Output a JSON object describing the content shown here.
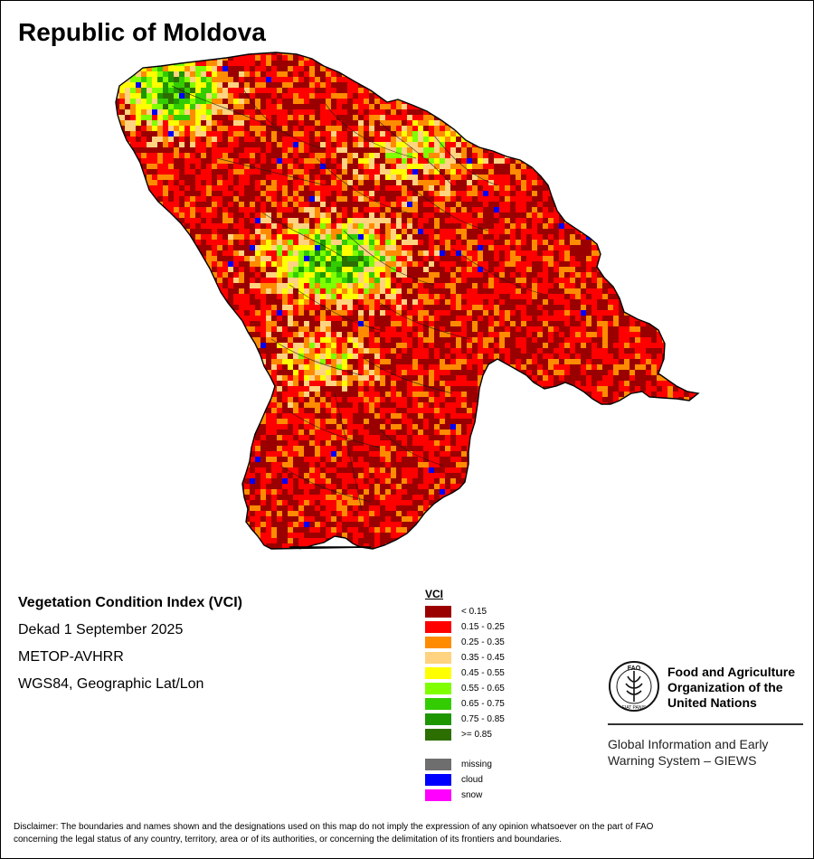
{
  "title": "Republic of Moldova",
  "info": {
    "index_name": "Vegetation Condition Index (VCI)",
    "period": "Dekad 1 September 2025",
    "sensor": "METOP-AVHRR",
    "projection": "WGS84, Geographic Lat/Lon"
  },
  "legend": {
    "title": "VCI",
    "classes": [
      {
        "label": "< 0.15",
        "color": "#9b0000"
      },
      {
        "label": "0.15 - 0.25",
        "color": "#ff0000"
      },
      {
        "label": "0.25 - 0.35",
        "color": "#ff8c00"
      },
      {
        "label": "0.35 - 0.45",
        "color": "#ffd37f"
      },
      {
        "label": "0.45 - 0.55",
        "color": "#ffff00"
      },
      {
        "label": "0.55 - 0.65",
        "color": "#7fff00"
      },
      {
        "label": "0.65 - 0.75",
        "color": "#33cc00"
      },
      {
        "label": "0.75 - 0.85",
        "color": "#1e9600"
      },
      {
        "label": ">= 0.85",
        "color": "#2d6e00"
      }
    ],
    "special": [
      {
        "label": "missing",
        "color": "#6e6e6e"
      },
      {
        "label": "cloud",
        "color": "#0000ff"
      },
      {
        "label": "snow",
        "color": "#ff00ff"
      }
    ]
  },
  "fao": {
    "name_line1": "Food and Agriculture",
    "name_line2": "Organization of the",
    "name_line3": "United Nations",
    "system_line1": "Global Information and Early",
    "system_line2": "Warning System – GIEWS",
    "logo_text": "FAO",
    "logo_motto": "FIAT PANIS"
  },
  "disclaimer_line1": "Disclaimer: The boundaries and names shown and the designations used on this map do not imply the expression of any opinion whatsoever on the part of FAO",
  "disclaimer_line2": "concerning the legal status of any country, territory, area or of its authorities, or concerning the delimitation of its frontiers and boundaries."
}
